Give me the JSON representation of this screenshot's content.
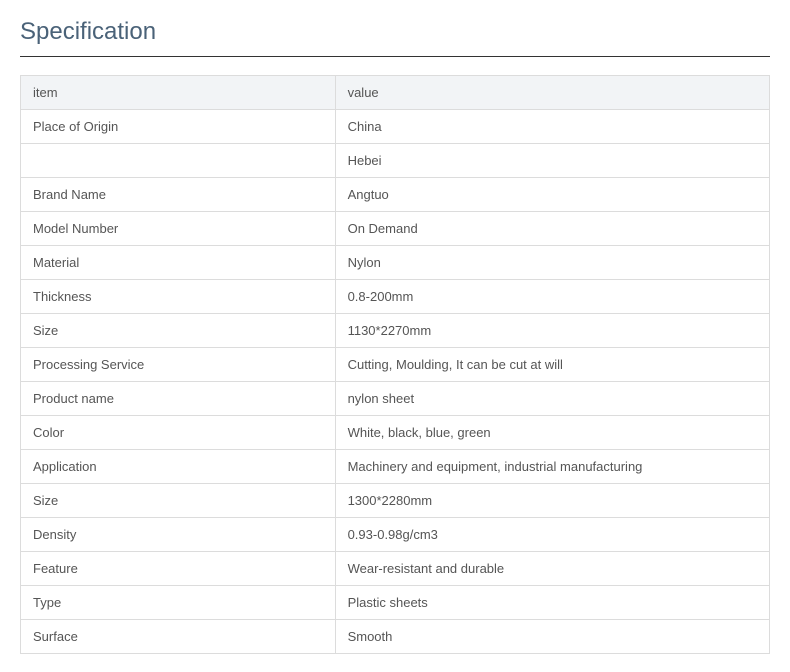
{
  "title": "Specification",
  "table": {
    "columns": [
      "item",
      "value"
    ],
    "rows": [
      [
        "Place of Origin",
        "China"
      ],
      [
        "",
        "Hebei"
      ],
      [
        "Brand Name",
        "Angtuo"
      ],
      [
        "Model Number",
        "On Demand"
      ],
      [
        "Material",
        "Nylon"
      ],
      [
        "Thickness",
        "0.8-200mm"
      ],
      [
        "Size",
        "1130*2270mm"
      ],
      [
        "Processing Service",
        "Cutting, Moulding, It can be cut at will"
      ],
      [
        "Product name",
        "nylon sheet"
      ],
      [
        "Color",
        "White, black, blue, green"
      ],
      [
        "Application",
        "Machinery and equipment, industrial manufacturing"
      ],
      [
        "Size",
        "1300*2280mm"
      ],
      [
        "Density",
        "0.93-0.98g/cm3"
      ],
      [
        "Feature",
        "Wear-resistant and durable"
      ],
      [
        "Type",
        "Plastic sheets"
      ],
      [
        "Surface",
        "Smooth"
      ]
    ]
  },
  "styling": {
    "title_color": "#4a6278",
    "title_fontsize": 24,
    "title_border_color": "#333333",
    "body_fontsize": 13,
    "cell_text_color": "#555555",
    "border_color": "#dcdcdc",
    "header_bg": "#f2f4f6",
    "background_color": "#ffffff",
    "col_widths": [
      "42%",
      "58%"
    ]
  }
}
